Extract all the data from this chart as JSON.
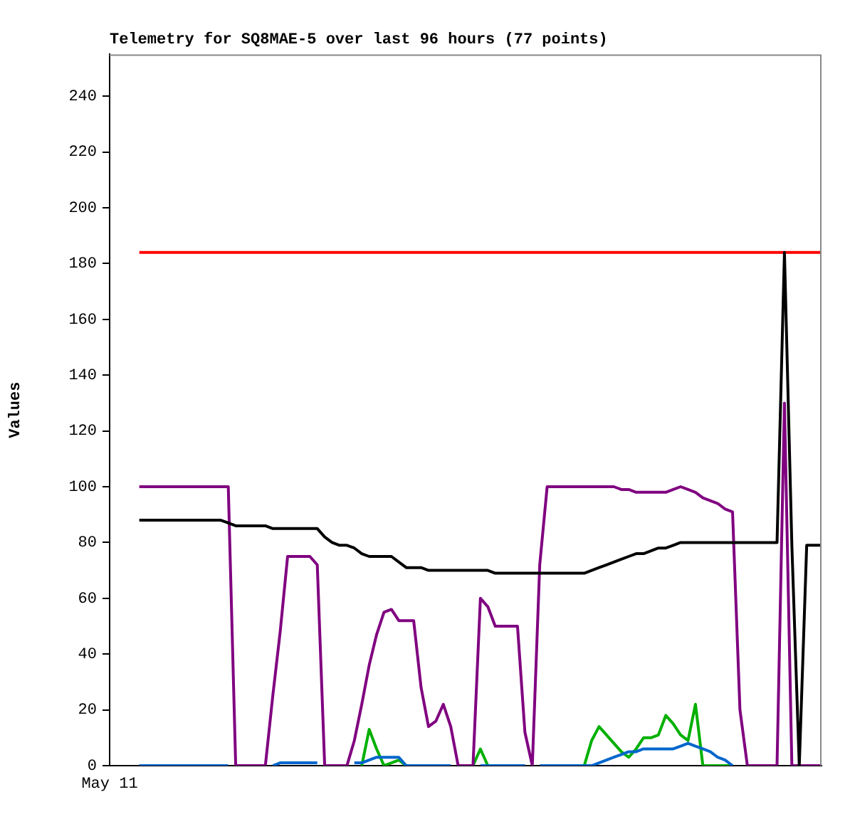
{
  "chart_data": {
    "type": "line",
    "title": "Telemetry for SQ8MAE-5 over last 96 hours (77 points)",
    "ylabel": "Values",
    "categories": [
      "May 11",
      null,
      null,
      null,
      null,
      null,
      null,
      null,
      null,
      null,
      null,
      null,
      null,
      null,
      null,
      null,
      null,
      null,
      null,
      null,
      null,
      null,
      null,
      null,
      null,
      null,
      null,
      null,
      null,
      null,
      null,
      null,
      null,
      null,
      null,
      null,
      null,
      null,
      null,
      null,
      null,
      null,
      null,
      null,
      null,
      null,
      null,
      null,
      null,
      null,
      null,
      null,
      null,
      null,
      null,
      null,
      null,
      null,
      null,
      null,
      null,
      null,
      null,
      null,
      null,
      null,
      null,
      null,
      null,
      null,
      null,
      null,
      null,
      null,
      null,
      null,
      null,
      null,
      null,
      null,
      null,
      null,
      null,
      null,
      null,
      null,
      null,
      null,
      null,
      null,
      null,
      null,
      null,
      null,
      null,
      null,
      null
    ],
    "ylim": [
      0,
      255
    ],
    "yticks": [
      0,
      20,
      40,
      60,
      80,
      100,
      120,
      140,
      160,
      180,
      200,
      220,
      240
    ],
    "grid": false,
    "legend": false,
    "marker": "none",
    "line_style": "solid",
    "series": [
      {
        "color": "#00b000",
        "values": [
          null,
          null,
          null,
          null,
          null,
          null,
          null,
          null,
          null,
          null,
          null,
          null,
          null,
          null,
          null,
          null,
          null,
          null,
          null,
          null,
          null,
          null,
          null,
          null,
          null,
          null,
          null,
          null,
          null,
          null,
          null,
          null,
          null,
          null,
          0,
          13,
          6,
          0,
          1,
          2,
          0,
          null,
          null,
          null,
          null,
          null,
          null,
          null,
          null,
          0,
          6,
          0,
          null,
          null,
          null,
          null,
          null,
          null,
          null,
          null,
          null,
          null,
          null,
          null,
          0,
          9,
          14,
          11,
          8,
          5,
          3,
          6,
          10,
          10,
          11,
          18,
          15,
          11,
          9,
          22,
          0,
          0,
          0,
          0,
          0,
          null,
          null,
          null,
          null,
          null,
          null,
          null,
          null,
          null,
          null,
          null,
          null
        ]
      },
      {
        "color": "#0066cc",
        "values": [
          null,
          null,
          null,
          null,
          0,
          0,
          0,
          0,
          0,
          0,
          0,
          0,
          0,
          0,
          0,
          0,
          0,
          null,
          null,
          null,
          null,
          null,
          0,
          1,
          1,
          1,
          1,
          1,
          1,
          null,
          null,
          null,
          null,
          1,
          1,
          2,
          3,
          3,
          3,
          3,
          0,
          0,
          0,
          0,
          0,
          0,
          0,
          null,
          null,
          null,
          0,
          0,
          0,
          0,
          0,
          0,
          0,
          null,
          0,
          0,
          0,
          0,
          0,
          0,
          0,
          0,
          1,
          2,
          3,
          4,
          5,
          5,
          6,
          6,
          6,
          6,
          6,
          7,
          8,
          7,
          6,
          5,
          3,
          2,
          0,
          null,
          null,
          null,
          null,
          null,
          null,
          null,
          null,
          null,
          null,
          null,
          null
        ]
      },
      {
        "color": "#ff0000",
        "values": [
          null,
          null,
          null,
          null,
          184,
          184,
          184,
          184,
          184,
          184,
          184,
          184,
          184,
          184,
          184,
          184,
          184,
          184,
          184,
          184,
          184,
          184,
          184,
          184,
          184,
          184,
          184,
          184,
          184,
          184,
          184,
          184,
          184,
          184,
          184,
          184,
          184,
          184,
          184,
          184,
          184,
          184,
          184,
          184,
          184,
          184,
          184,
          184,
          184,
          184,
          184,
          184,
          184,
          184,
          184,
          184,
          184,
          184,
          184,
          184,
          184,
          184,
          184,
          184,
          184,
          184,
          184,
          184,
          184,
          184,
          184,
          184,
          184,
          184,
          184,
          184,
          184,
          184,
          184,
          184,
          184,
          184,
          184,
          184,
          184,
          184,
          184,
          184,
          184,
          184,
          184,
          184,
          184,
          184,
          184,
          184,
          184
        ]
      },
      {
        "color": "#800080",
        "values": [
          null,
          null,
          null,
          null,
          100,
          100,
          100,
          100,
          100,
          100,
          100,
          100,
          100,
          100,
          100,
          100,
          100,
          0,
          0,
          0,
          0,
          0,
          25,
          48,
          75,
          75,
          75,
          75,
          72,
          0,
          0,
          0,
          0,
          9,
          22,
          36,
          47,
          55,
          56,
          52,
          52,
          52,
          28,
          14,
          16,
          22,
          14,
          0,
          0,
          0,
          60,
          57,
          50,
          50,
          50,
          50,
          12,
          0,
          72,
          100,
          100,
          100,
          100,
          100,
          100,
          100,
          100,
          100,
          100,
          99,
          99,
          98,
          98,
          98,
          98,
          98,
          99,
          100,
          99,
          98,
          96,
          95,
          94,
          92,
          91,
          20,
          0,
          0,
          0,
          0,
          0,
          130,
          0,
          0,
          0,
          0,
          0
        ]
      },
      {
        "color": "#000000",
        "values": [
          null,
          null,
          null,
          null,
          88,
          88,
          88,
          88,
          88,
          88,
          88,
          88,
          88,
          88,
          88,
          88,
          87,
          86,
          86,
          86,
          86,
          86,
          85,
          85,
          85,
          85,
          85,
          85,
          85,
          82,
          80,
          79,
          79,
          78,
          76,
          75,
          75,
          75,
          75,
          73,
          71,
          71,
          71,
          70,
          70,
          70,
          70,
          70,
          70,
          70,
          70,
          70,
          69,
          69,
          69,
          69,
          69,
          69,
          69,
          69,
          69,
          69,
          69,
          69,
          69,
          70,
          71,
          72,
          73,
          74,
          75,
          76,
          76,
          77,
          78,
          78,
          79,
          80,
          80,
          80,
          80,
          80,
          80,
          80,
          80,
          80,
          80,
          80,
          80,
          80,
          80,
          184,
          79,
          0,
          79,
          79,
          79
        ]
      }
    ]
  }
}
